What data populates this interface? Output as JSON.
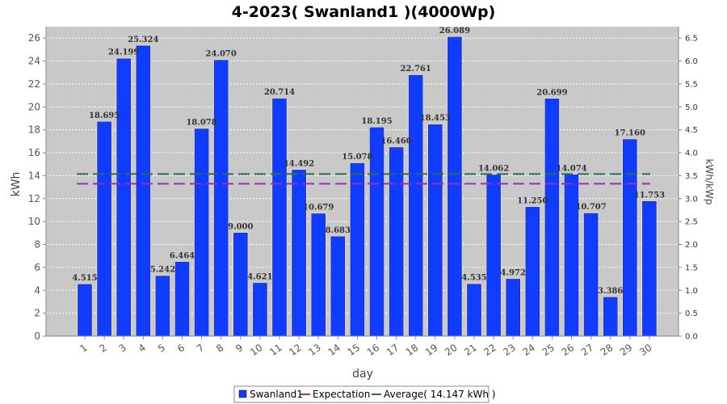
{
  "chart_data": {
    "type": "bar",
    "title": "4-2023( Swanland1 )(4000Wp)",
    "xlabel": "day",
    "ylabel": "kWh",
    "y2label": "kWh/kWp",
    "ylim": [
      0,
      27
    ],
    "y2lim": [
      0,
      6.75
    ],
    "yticks": [
      0,
      2,
      4,
      6,
      8,
      10,
      12,
      14,
      16,
      18,
      20,
      22,
      24,
      26
    ],
    "y2ticks": [
      "0.0",
      "0.5",
      "1.0",
      "1.5",
      "2.0",
      "2.5",
      "3.0",
      "3.5",
      "4.0",
      "4.5",
      "5.0",
      "5.5",
      "6.0",
      "6.5"
    ],
    "grid": true,
    "legend_position": "bottom",
    "categories": [
      "1",
      "2",
      "3",
      "4",
      "5",
      "6",
      "7",
      "8",
      "9",
      "10",
      "11",
      "12",
      "13",
      "14",
      "15",
      "16",
      "17",
      "18",
      "19",
      "20",
      "21",
      "22",
      "23",
      "24",
      "25",
      "26",
      "27",
      "28",
      "29",
      "30"
    ],
    "series": [
      {
        "name": "Swanland1",
        "color": "#0f3cff",
        "values": [
          4.515,
          18.695,
          24.199,
          25.324,
          5.242,
          6.464,
          18.078,
          24.07,
          9.0,
          4.621,
          20.714,
          14.492,
          10.679,
          8.683,
          15.078,
          18.195,
          16.46,
          22.761,
          18.453,
          26.089,
          4.535,
          14.062,
          4.972,
          11.25,
          20.699,
          14.074,
          10.707,
          3.386,
          17.16,
          11.753
        ],
        "value_labels": [
          "4.515",
          "18.695",
          "24.199",
          "25.324",
          "5.242",
          "6.464",
          "18.078",
          "24.070",
          "9.000",
          "4.621",
          "20.714",
          "14.492",
          "10.679",
          "8.683",
          "15.078",
          "18.195",
          "16.460",
          "22.761",
          "18.453",
          "26.089",
          "4.535",
          "14.062",
          "4.972",
          "11.250",
          "20.699",
          "14.074",
          "10.707",
          "3.386",
          "17.160",
          "11.753"
        ]
      }
    ],
    "lines": [
      {
        "name": "Expectation",
        "value": 13.3,
        "color": "#9b2fae"
      },
      {
        "name": "Average( 14.147 kWh )",
        "value": 14.147,
        "color": "#2e6b50"
      }
    ]
  }
}
